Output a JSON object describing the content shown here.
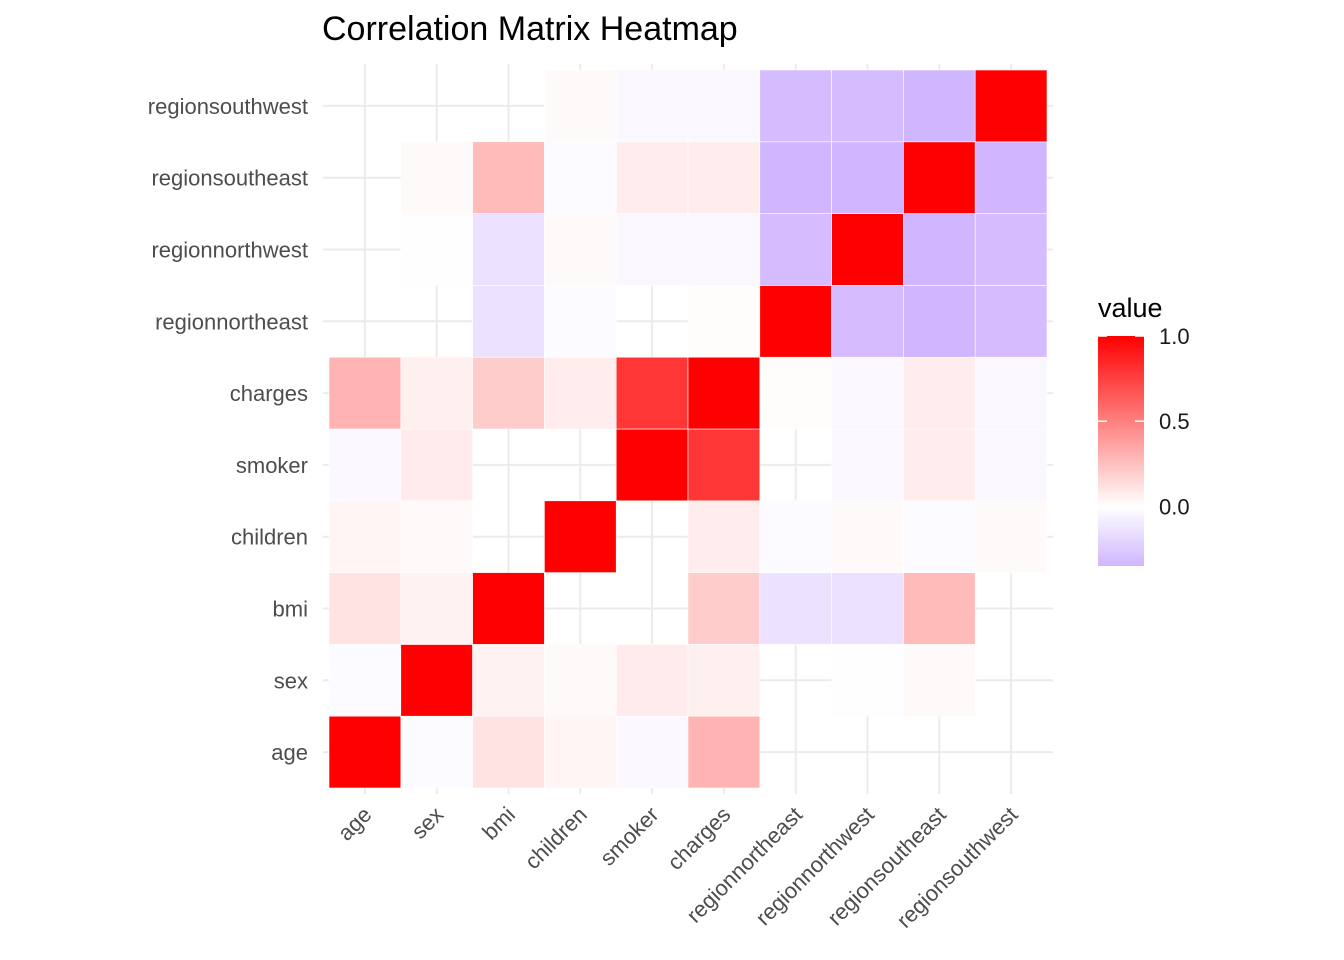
{
  "chart_data": {
    "type": "heatmap",
    "title": "Correlation Matrix Heatmap",
    "xlabel": "",
    "ylabel": "",
    "x_categories": [
      "age",
      "sex",
      "bmi",
      "children",
      "smoker",
      "charges",
      "regionnortheast",
      "regionnorthwest",
      "regionsoutheast",
      "regionsouthwest"
    ],
    "y_categories": [
      "age",
      "sex",
      "bmi",
      "children",
      "smoker",
      "charges",
      "regionnortheast",
      "regionnorthwest",
      "regionsoutheast",
      "regionsouthwest"
    ],
    "matrix": [
      [
        1.0,
        -0.02,
        0.11,
        0.04,
        -0.03,
        0.3,
        null,
        null,
        null,
        null
      ],
      [
        -0.02,
        1.0,
        0.05,
        0.02,
        0.08,
        0.06,
        null,
        -0.01,
        0.02,
        null
      ],
      [
        0.11,
        0.05,
        1.0,
        null,
        null,
        0.2,
        -0.14,
        -0.14,
        0.27,
        null
      ],
      [
        0.04,
        0.02,
        null,
        1.0,
        null,
        0.07,
        -0.02,
        0.02,
        -0.02,
        0.02
      ],
      [
        -0.03,
        0.08,
        null,
        null,
        1.0,
        0.79,
        null,
        -0.04,
        0.07,
        -0.04
      ],
      [
        0.3,
        0.06,
        0.2,
        0.07,
        0.79,
        1.0,
        0.01,
        -0.04,
        0.07,
        -0.04
      ],
      [
        null,
        null,
        -0.14,
        -0.02,
        null,
        0.01,
        1.0,
        -0.32,
        -0.35,
        -0.32
      ],
      [
        null,
        -0.01,
        -0.14,
        0.02,
        -0.04,
        -0.04,
        -0.32,
        1.0,
        -0.35,
        -0.32
      ],
      [
        null,
        0.02,
        0.27,
        -0.02,
        0.07,
        0.07,
        -0.35,
        -0.35,
        1.0,
        -0.35
      ],
      [
        null,
        null,
        null,
        0.02,
        -0.04,
        -0.04,
        -0.32,
        -0.32,
        -0.35,
        1.0
      ]
    ],
    "color_scale": {
      "low_value": -0.35,
      "mid_value": 0.0,
      "high_value": 1.0,
      "low_color": "#d0b6ff",
      "mid_color": "#ffffff",
      "high_color": "#ff0000"
    },
    "legend": {
      "title": "value",
      "ticks": [
        1.0,
        0.5,
        0.0
      ],
      "tick_labels": [
        "1.0",
        "0.5",
        "0.0"
      ],
      "placement": "right"
    },
    "grid": true
  }
}
